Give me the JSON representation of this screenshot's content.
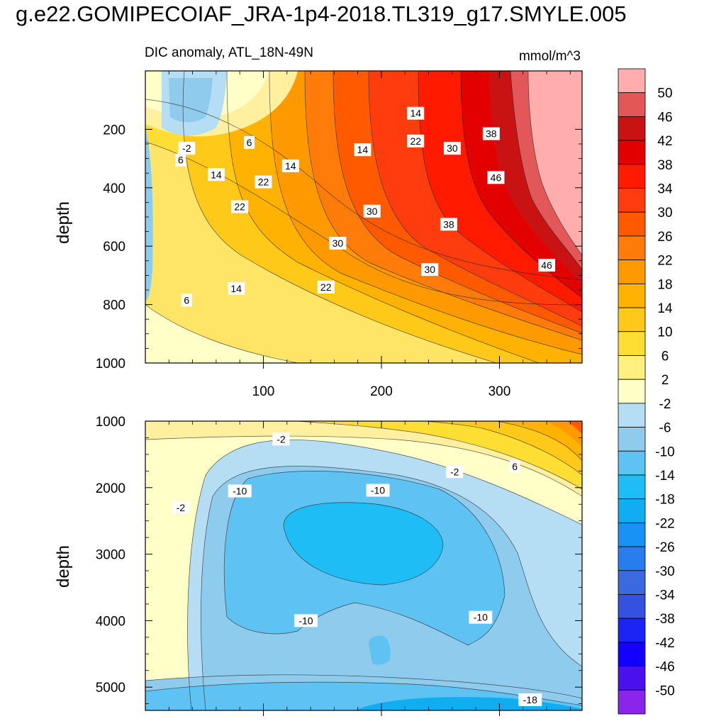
{
  "header": {
    "title": "g.e22.GOMIPECOIAF_JRA-1p4-2018.TL319_g17.SMYLE.005",
    "subtitle": "DIC anomaly, ATL_18N-49N",
    "units": "mmol/m^3"
  },
  "chart_data": [
    {
      "type": "heatmap",
      "name": "upper-panel",
      "xlabel": "",
      "ylabel": "depth",
      "xlim": [
        0,
        370
      ],
      "ylim": [
        1000,
        0
      ],
      "x_ticks": [
        100,
        200,
        300
      ],
      "y_ticks": [
        200,
        400,
        600,
        800,
        1000
      ],
      "contour_labels": [
        {
          "text": "-2",
          "x": 35,
          "y": 265
        },
        {
          "text": "6",
          "x": 88,
          "y": 245
        },
        {
          "text": "6",
          "x": 30,
          "y": 305
        },
        {
          "text": "14",
          "x": 60,
          "y": 355
        },
        {
          "text": "22",
          "x": 100,
          "y": 380
        },
        {
          "text": "14",
          "x": 123,
          "y": 325
        },
        {
          "text": "22",
          "x": 80,
          "y": 465
        },
        {
          "text": "14",
          "x": 184,
          "y": 270
        },
        {
          "text": "14",
          "x": 229,
          "y": 145
        },
        {
          "text": "22",
          "x": 229,
          "y": 240
        },
        {
          "text": "30",
          "x": 260,
          "y": 265
        },
        {
          "text": "38",
          "x": 293,
          "y": 215
        },
        {
          "text": "46",
          "x": 297,
          "y": 365
        },
        {
          "text": "30",
          "x": 192,
          "y": 480
        },
        {
          "text": "38",
          "x": 257,
          "y": 525
        },
        {
          "text": "30",
          "x": 163,
          "y": 590
        },
        {
          "text": "30",
          "x": 241,
          "y": 680
        },
        {
          "text": "22",
          "x": 153,
          "y": 740
        },
        {
          "text": "14",
          "x": 77,
          "y": 745
        },
        {
          "text": "6",
          "x": 35,
          "y": 785
        },
        {
          "text": "46",
          "x": 340,
          "y": 665
        }
      ]
    },
    {
      "type": "heatmap",
      "name": "lower-panel",
      "xlabel": "",
      "ylabel": "depth",
      "xlim": [
        0,
        370
      ],
      "ylim": [
        5350,
        1000
      ],
      "x_ticks": [
        100,
        200,
        300
      ],
      "y_ticks": [
        1000,
        2000,
        3000,
        4000,
        5000
      ],
      "contour_labels": [
        {
          "text": "-2",
          "x": 115,
          "y": 1270
        },
        {
          "text": "-2",
          "x": 262,
          "y": 1760
        },
        {
          "text": "6",
          "x": 313,
          "y": 1680
        },
        {
          "text": "-10",
          "x": 80,
          "y": 2050
        },
        {
          "text": "-10",
          "x": 197,
          "y": 2040
        },
        {
          "text": "-2",
          "x": 30,
          "y": 2300
        },
        {
          "text": "-10",
          "x": 136,
          "y": 4000
        },
        {
          "text": "-10",
          "x": 284,
          "y": 3950
        },
        {
          "text": "-18",
          "x": 326,
          "y": 5190
        }
      ]
    }
  ],
  "colorbar": {
    "levels": [
      "50",
      "46",
      "42",
      "38",
      "34",
      "30",
      "26",
      "22",
      "18",
      "14",
      "10",
      "6",
      "2",
      "-2",
      "-6",
      "-10",
      "-14",
      "-18",
      "-22",
      "-26",
      "-30",
      "-34",
      "-38",
      "-42",
      "-46",
      "-50"
    ],
    "colors": [
      "#ffadad",
      "#e25757",
      "#c91313",
      "#e30000",
      "#ff1a00",
      "#ff3c0d",
      "#ff5a00",
      "#ff7b0a",
      "#ff9900",
      "#ffb300",
      "#ffc91a",
      "#ffde33",
      "#fff080",
      "#ffffc8",
      "#b5ddf4",
      "#8fcbed",
      "#5ec2f3",
      "#1fbdf5",
      "#10aef0",
      "#1893f5",
      "#2a7ded",
      "#3a69e0",
      "#3650e0",
      "#1a25f5",
      "#1400ff",
      "#4a10ee",
      "#8a25ea"
    ]
  }
}
